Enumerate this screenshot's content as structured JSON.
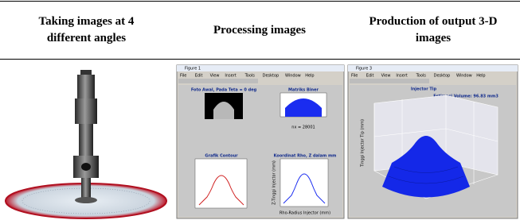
{
  "table": {
    "headers": [
      "Taking images at 4 different angles",
      "Processing images",
      "Production of output 3-D images"
    ]
  },
  "processing_window": {
    "title": "Figure 1",
    "menu": [
      "File",
      "Edit",
      "View",
      "Insert",
      "Tools",
      "Desktop",
      "Window",
      "Help"
    ],
    "photo_title": "Foto Awal, Pada Teta = 0 deg",
    "binary_title": "Matriks Biner",
    "binary_note": "nx = 28001",
    "contour_title": "Grafik Contour",
    "coord_title": "Koordinat Rho, Z dalam mm",
    "coord_xlabel": "Rho-Radius Injector (mm)",
    "coord_ylabel": "Z-Tinggi Injector (mm)"
  },
  "output_window": {
    "title": "Figure 3",
    "menu": [
      "File",
      "Edit",
      "View",
      "Insert",
      "Tools",
      "Desktop",
      "Window",
      "Help"
    ],
    "plot_title": "Injector Tip",
    "volume": "Estimasi Volume: 96.83 mm3",
    "zlabel": "Tinggi Injector Tip (mm)"
  }
}
